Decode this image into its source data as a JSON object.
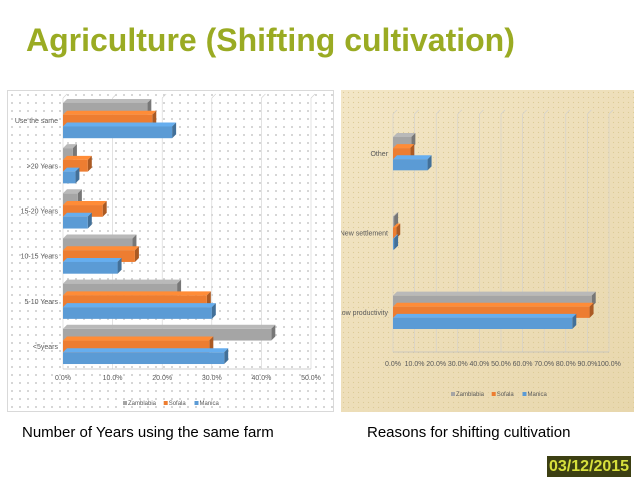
{
  "slide": {
    "title": "Agriculture (Shifting cultivation)",
    "caption_left": "Number of Years using the same farm",
    "caption_right": "Reasons for shifting cultivation",
    "date": "03/12/2015"
  },
  "colors": {
    "title": "#9aab23",
    "zamblabia": "#a5a5a5",
    "sofala": "#ed7d31",
    "manica": "#5b9bd5",
    "date_bg": "#3c3f12",
    "date_text": "#d8e03c"
  },
  "chart_data": [
    {
      "type": "bar",
      "orientation": "horizontal",
      "title": "",
      "categories": [
        "<5years",
        "5-10 Years",
        "10-15 Years",
        "15-20 Years",
        ">20 Years",
        "Use the same"
      ],
      "series": [
        {
          "name": "Zamblabia",
          "values": [
            42.0,
            23.0,
            14.0,
            3.0,
            2.0,
            17.0
          ]
        },
        {
          "name": "Sofala",
          "values": [
            29.5,
            29.0,
            14.5,
            8.0,
            5.0,
            18.0
          ]
        },
        {
          "name": "Manica",
          "values": [
            32.5,
            30.0,
            11.0,
            5.0,
            2.5,
            22.0
          ]
        }
      ],
      "x_ticks": [
        "0.0%",
        "10.0%",
        "20.0%",
        "30.0%",
        "40.0%",
        "50.0%"
      ],
      "xlim": [
        0,
        50
      ],
      "legend": [
        "Zamblabia",
        "Sofala",
        "Manica"
      ],
      "legend_position": "bottom"
    },
    {
      "type": "bar",
      "orientation": "horizontal",
      "title": "",
      "categories": [
        "Low productivity",
        "New settlement",
        "Other"
      ],
      "series": [
        {
          "name": "Zamblabia",
          "values": [
            92.0,
            0.5,
            8.5
          ]
        },
        {
          "name": "Sofala",
          "values": [
            91.0,
            1.5,
            8.0
          ]
        },
        {
          "name": "Manica",
          "values": [
            83.0,
            0.5,
            16.0
          ]
        }
      ],
      "x_ticks": [
        "0.0%",
        "10.0%",
        "20.0%",
        "30.0%",
        "40.0%",
        "50.0%",
        "60.0%",
        "70.0%",
        "80.0%",
        "90.0%",
        "100.0%"
      ],
      "xlim": [
        0,
        100
      ],
      "legend": [
        "Zamblabia",
        "Sofala",
        "Manica"
      ],
      "legend_position": "bottom"
    }
  ]
}
